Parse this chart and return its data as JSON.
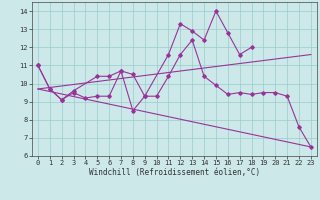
{
  "x": [
    0,
    1,
    2,
    3,
    4,
    5,
    6,
    7,
    8,
    9,
    10,
    11,
    12,
    13,
    14,
    15,
    16,
    17,
    18,
    19,
    20,
    21,
    22,
    23
  ],
  "line1": [
    11.0,
    9.7,
    9.1,
    9.6,
    null,
    10.4,
    10.4,
    10.7,
    10.5,
    9.3,
    9.3,
    10.4,
    11.6,
    12.4,
    10.4,
    9.9,
    9.4,
    9.5,
    9.4,
    9.5,
    9.5,
    9.3,
    7.6,
    6.5
  ],
  "line2": [
    11.0,
    9.7,
    9.1,
    9.5,
    9.2,
    9.3,
    9.3,
    10.7,
    8.5,
    9.3,
    null,
    11.6,
    13.3,
    12.9,
    12.4,
    14.0,
    12.8,
    11.6,
    12.0,
    null,
    null,
    null,
    null,
    null
  ],
  "line3": [
    [
      0,
      9.7
    ],
    [
      23,
      6.5
    ]
  ],
  "line4": [
    [
      0,
      9.7
    ],
    [
      23,
      11.6
    ]
  ],
  "background_color": "#cce8e8",
  "grid_color": "#99cccc",
  "line_color": "#993399",
  "xlabel": "Windchill (Refroidissement éolien,°C)",
  "ylim": [
    6,
    14.5
  ],
  "xlim": [
    -0.5,
    23.5
  ],
  "yticks": [
    6,
    7,
    8,
    9,
    10,
    11,
    12,
    13,
    14
  ],
  "xticks": [
    0,
    1,
    2,
    3,
    4,
    5,
    6,
    7,
    8,
    9,
    10,
    11,
    12,
    13,
    14,
    15,
    16,
    17,
    18,
    19,
    20,
    21,
    22,
    23
  ],
  "xlabel_fontsize": 5.5,
  "tick_fontsize": 5.0,
  "line_width": 0.8,
  "marker_size": 1.8
}
